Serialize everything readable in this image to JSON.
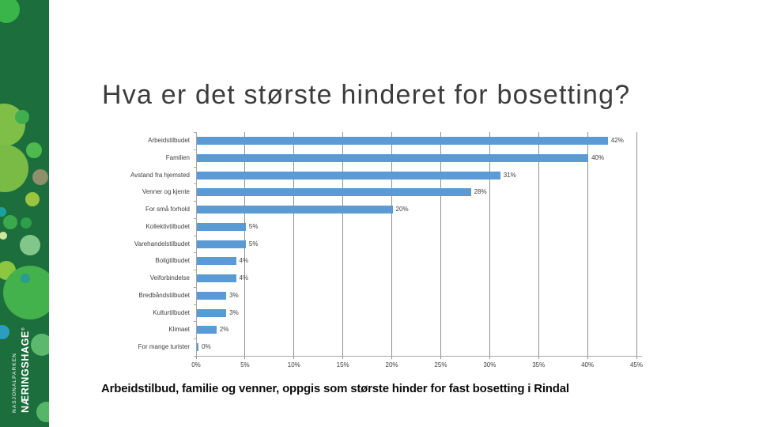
{
  "slide": {
    "title": "Hva er det største hinderet for bosetting?",
    "summary": "Arbeidstilbud, familie og venner, oppgis som største hinder for fast bosetting i Rindal"
  },
  "sidebar": {
    "brand_line1": "NASJONALPARKEN",
    "brand_line2": "NÆRINGSHAGE",
    "trademark": "®",
    "base_color": "#1c6f3d"
  },
  "chart_data": {
    "type": "bar",
    "orientation": "horizontal",
    "title": "",
    "categories": [
      "Arbeidstilbudet",
      "Familien",
      "Avstand fra hjemsted",
      "Venner og kjente",
      "For små forhold",
      "Kollektivtilbudet",
      "Varehandelstilbudet",
      "Boligtilbudet",
      "Veiforbindelse",
      "Bredbåndstilbudet",
      "Kulturtilbudet",
      "Klimaet",
      "For mange turister"
    ],
    "values": [
      42,
      40,
      31,
      28,
      20,
      5,
      5,
      4,
      4,
      3,
      3,
      2,
      0
    ],
    "value_labels": [
      "42%",
      "40%",
      "31%",
      "28%",
      "20%",
      "5%",
      "5%",
      "4%",
      "4%",
      "3%",
      "3%",
      "2%",
      "0%"
    ],
    "xlim": [
      0,
      45
    ],
    "x_tick_step": 5,
    "x_tick_labels": [
      "0%",
      "5%",
      "10%",
      "15%",
      "20%",
      "25%",
      "30%",
      "35%",
      "40%",
      "45%"
    ],
    "bar_color": "#5b9bd5",
    "gridline_color": "#909090",
    "axis_color": "#a6a6a6",
    "text_color": "#404040",
    "grid": "vertical",
    "legend": "none"
  }
}
